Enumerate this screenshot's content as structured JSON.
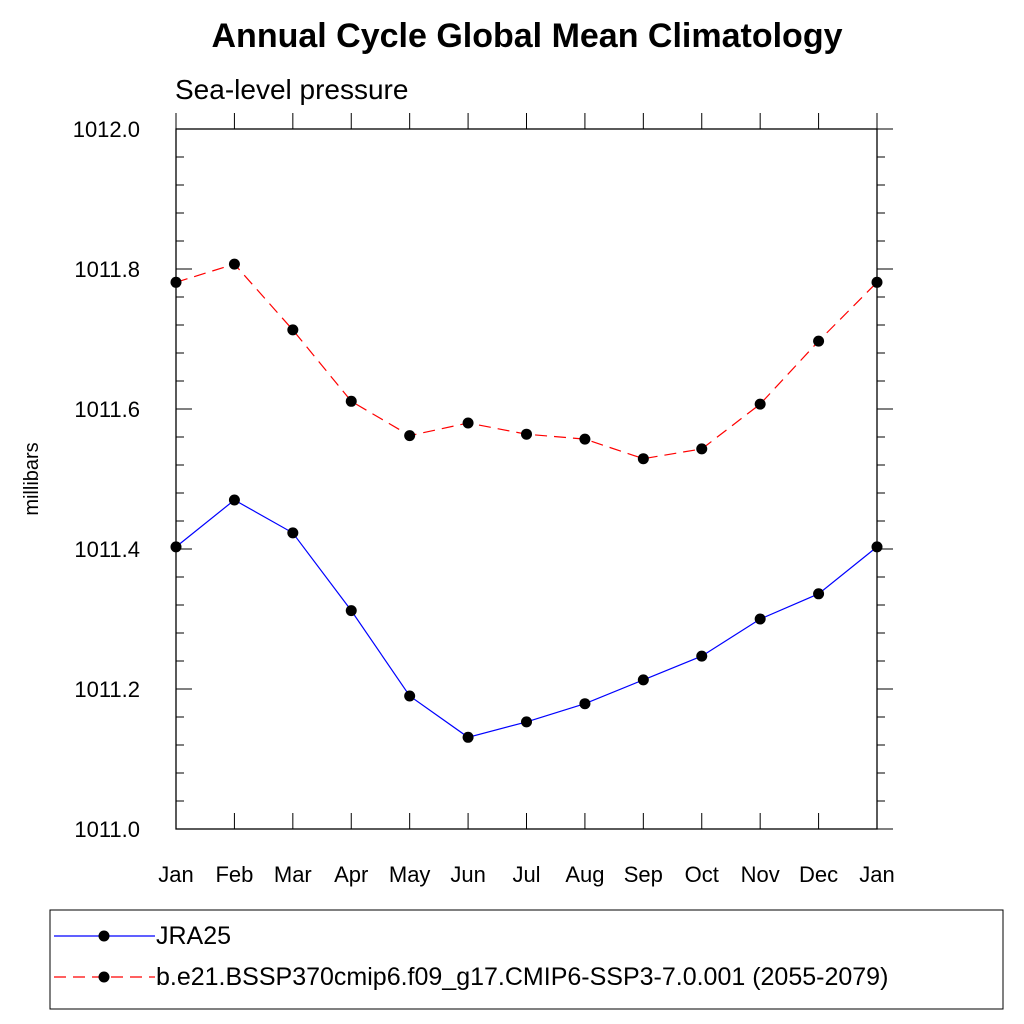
{
  "chart_data": {
    "type": "line",
    "title": "Annual Cycle Global Mean Climatology",
    "subtitle": "Sea-level pressure",
    "xlabel": "",
    "ylabel": "millibars",
    "categories": [
      "Jan",
      "Feb",
      "Mar",
      "Apr",
      "May",
      "Jun",
      "Jul",
      "Aug",
      "Sep",
      "Oct",
      "Nov",
      "Dec",
      "Jan"
    ],
    "ylim": [
      1011.0,
      1012.0
    ],
    "yticks": [
      "1011.0",
      "1011.2",
      "1011.4",
      "1011.6",
      "1011.8",
      "1012.0"
    ],
    "grid": false,
    "legend_position": "bottom",
    "series": [
      {
        "name": "JRA25",
        "color": "#0000ff",
        "line_style": "solid",
        "marker": "circle",
        "values": [
          1011.403,
          1011.47,
          1011.423,
          1011.312,
          1011.19,
          1011.131,
          1011.153,
          1011.179,
          1011.213,
          1011.247,
          1011.3,
          1011.336,
          1011.403
        ]
      },
      {
        "name": "b.e21.BSSP370cmip6.f09_g17.CMIP6-SSP3-7.0.001 (2055-2079)",
        "color": "#ff0000",
        "line_style": "dashed",
        "marker": "circle",
        "values": [
          1011.781,
          1011.807,
          1011.713,
          1011.611,
          1011.562,
          1011.58,
          1011.564,
          1011.557,
          1011.529,
          1011.543,
          1011.607,
          1011.697,
          1011.781
        ]
      }
    ]
  }
}
